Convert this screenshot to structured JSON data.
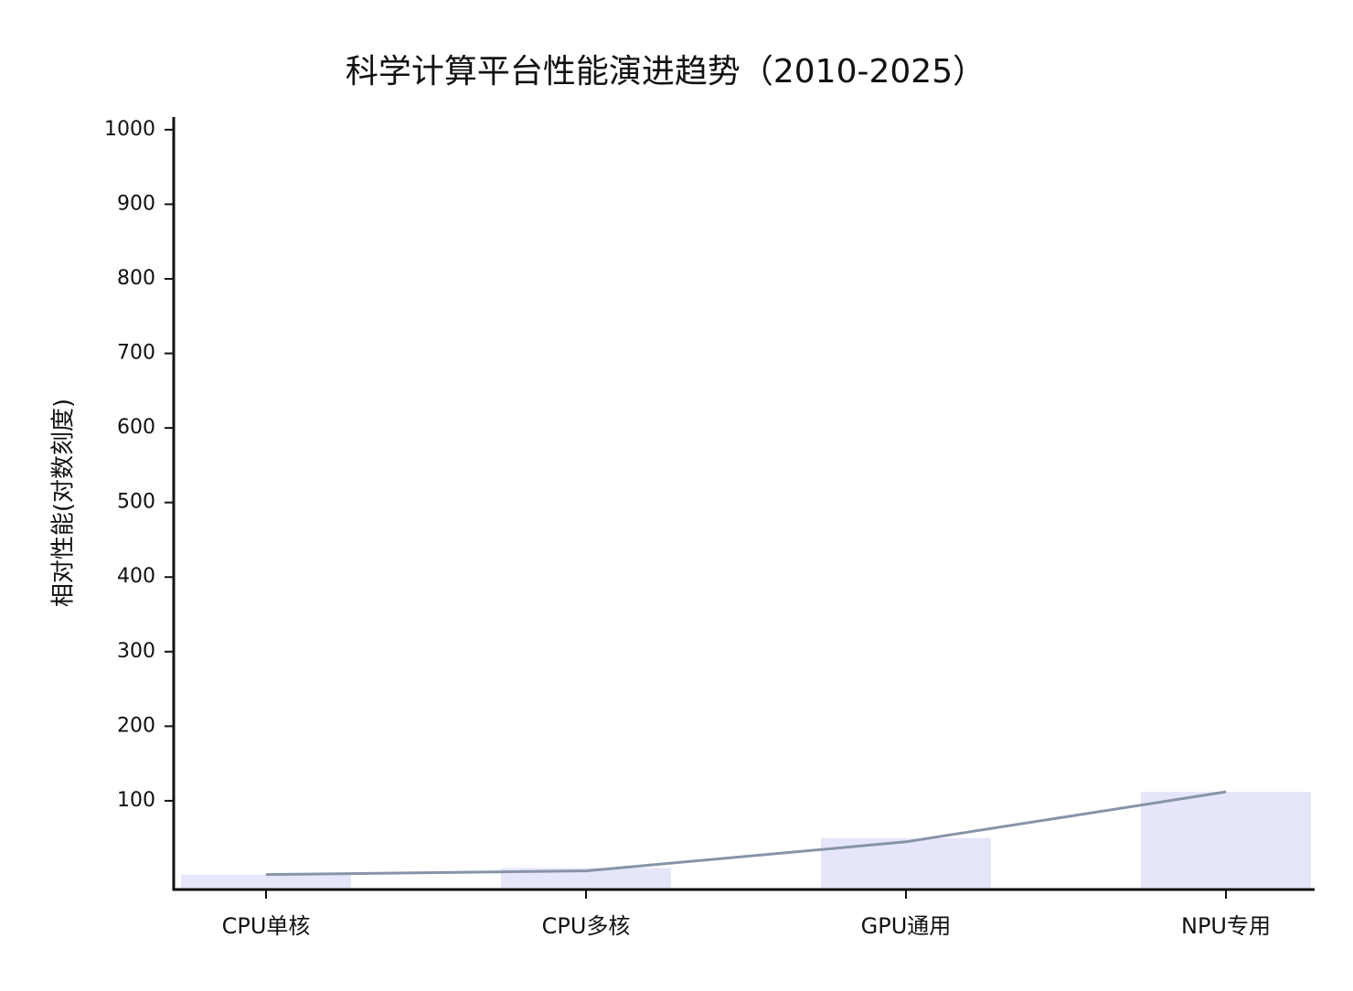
{
  "chart_data": {
    "type": "bar+line",
    "title": "科学计算平台性能演进趋势（2010-2025）",
    "y_label": "相对性能(对数刻度)",
    "categories": [
      "CPU单核",
      "CPU多核",
      "GPU通用",
      "NPU专用"
    ],
    "series": [
      {
        "type": "bar",
        "color": "#e6e6fa",
        "values": [
          1,
          10,
          50,
          112
        ]
      },
      {
        "type": "line",
        "color": "#8794a8",
        "values": [
          1,
          6,
          45,
          112
        ]
      }
    ],
    "ylim": [
      -19,
      1017
    ],
    "yticks": [
      100,
      200,
      300,
      400,
      500,
      600,
      700,
      800,
      900,
      1000
    ]
  }
}
